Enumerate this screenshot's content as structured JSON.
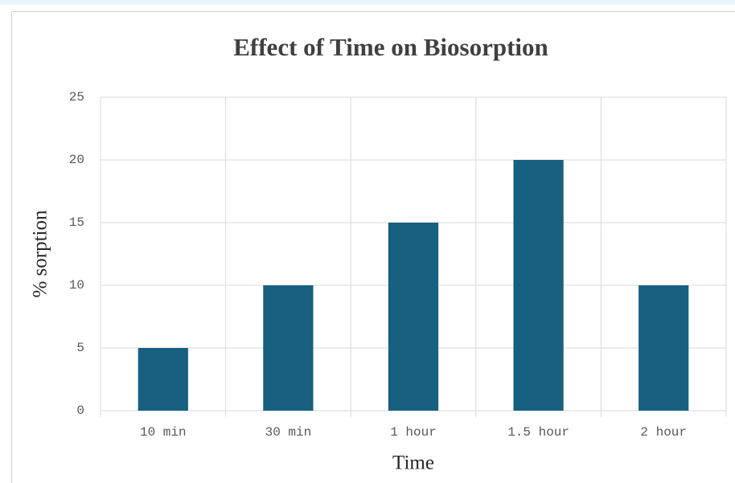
{
  "chart_data": {
    "type": "bar",
    "title": "Effect of Time on Biosorption",
    "x_label": "Time",
    "y_label": "% sorption",
    "categories": [
      "10 min",
      "30 min",
      "1 hour",
      "1.5 hour",
      "2 hour"
    ],
    "values": [
      5,
      10,
      15,
      20,
      10
    ],
    "color": "#17607f",
    "ylim": [
      0,
      25
    ],
    "yticks": [
      0,
      5,
      10,
      15,
      20,
      25
    ],
    "grid": true
  }
}
